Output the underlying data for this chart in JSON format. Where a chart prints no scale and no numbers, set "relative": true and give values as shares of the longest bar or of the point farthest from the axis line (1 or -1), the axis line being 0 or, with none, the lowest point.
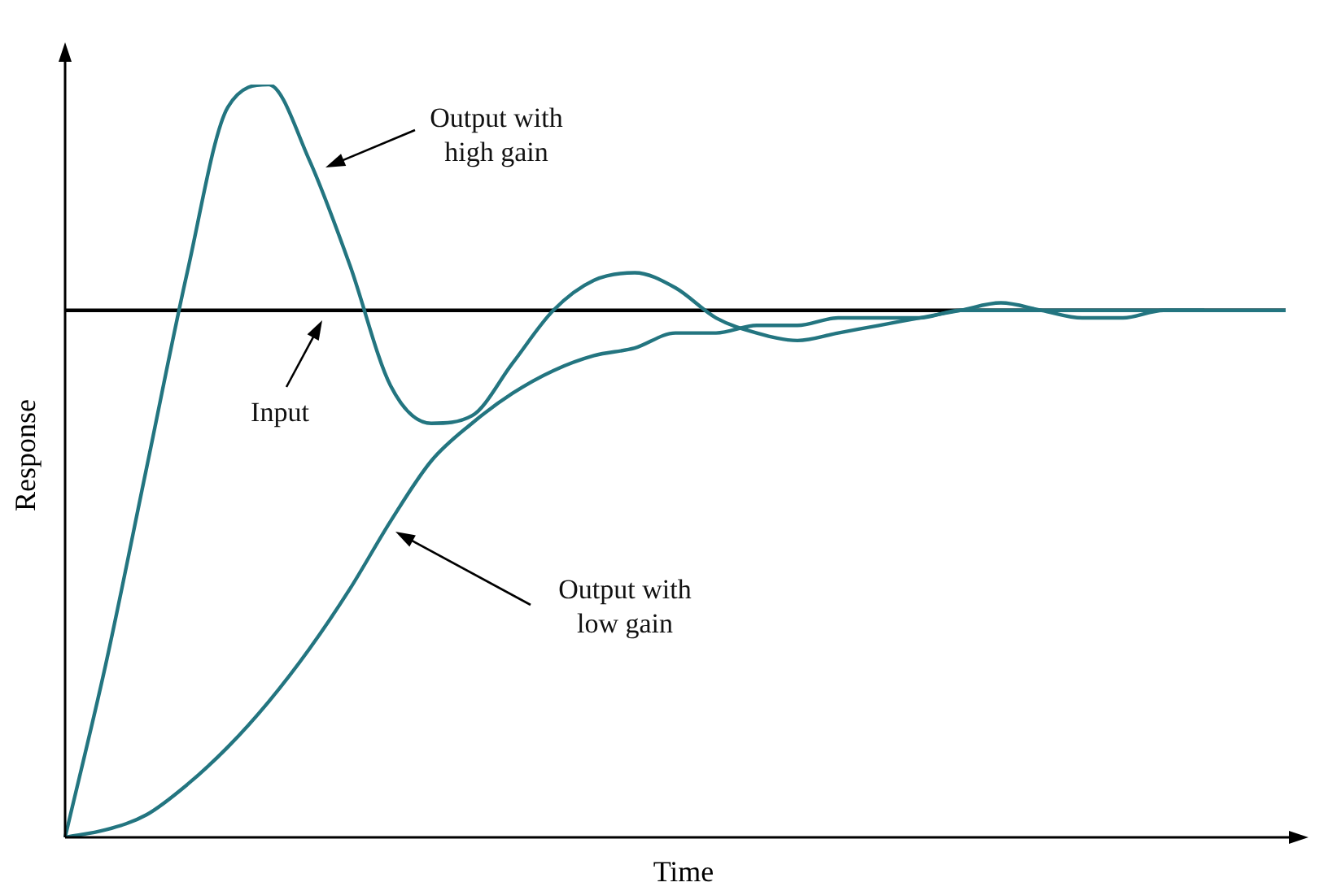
{
  "chart_data": {
    "type": "line",
    "relative": true,
    "xlabel": "Time",
    "ylabel": "Response",
    "legend": false,
    "marker": "none",
    "line_style": "solid",
    "categories": [
      null,
      null,
      null,
      null,
      null,
      null,
      null,
      null,
      null,
      null,
      null,
      null,
      null,
      null,
      null,
      null,
      null,
      null,
      null,
      null,
      null,
      null,
      null,
      null,
      null,
      null,
      null,
      null,
      null,
      null,
      null
    ],
    "series": [
      {
        "color": "#237580",
        "values": [
          0,
          0.23,
          0.49,
          0.75,
          0.97,
          1,
          0.9,
          0.76,
          0.6,
          0.55,
          0.56,
          0.63,
          0.7,
          0.74,
          0.75,
          0.73,
          0.69,
          0.67,
          0.66,
          0.67,
          0.68,
          0.69,
          0.7,
          0.71,
          0.7,
          0.69,
          0.69,
          0.7,
          0.7,
          0.7,
          0.7
        ]
      },
      {
        "color": "#237580",
        "values": [
          0,
          0.01,
          0.03,
          0.07,
          0.12,
          0.18,
          0.25,
          0.33,
          0.42,
          0.5,
          0.55,
          0.59,
          0.62,
          0.64,
          0.65,
          0.67,
          0.67,
          0.68,
          0.68,
          0.69,
          0.69,
          0.69,
          0.7,
          0.7,
          0.7,
          0.7,
          0.7,
          0.7,
          0.7,
          null,
          null
        ]
      }
    ],
    "ref_lines": [
      {
        "axis": "y",
        "value": 0.7,
        "color": "#000000",
        "line_style": "solid"
      }
    ],
    "annotations": [
      "Output with\nhigh gain",
      "Input",
      "Output with\nlow gain"
    ]
  }
}
